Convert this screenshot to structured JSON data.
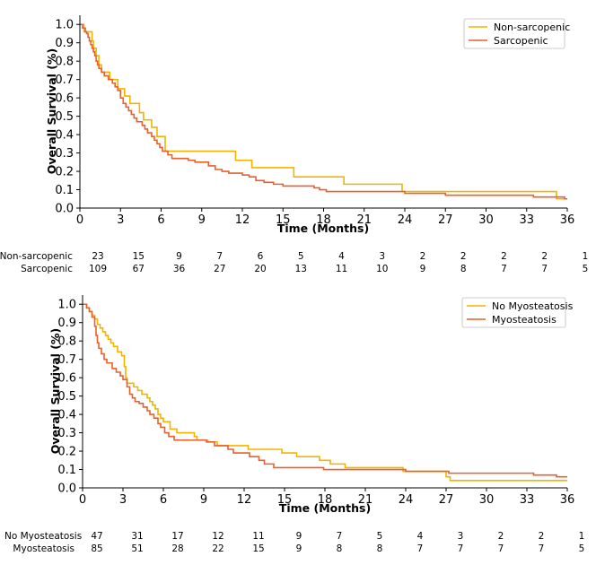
{
  "chart_data": [
    {
      "type": "line",
      "subtype": "kaplan-meier",
      "xlabel": "Time (Months)",
      "ylabel": "Overall Survival (%)",
      "xlim": [
        0,
        36
      ],
      "ylim": [
        0,
        1.05
      ],
      "x_ticks": [
        0,
        3,
        6,
        9,
        12,
        15,
        18,
        21,
        24,
        27,
        30,
        33,
        36
      ],
      "y_ticks": [
        0.0,
        0.1,
        0.2,
        0.3,
        0.4,
        0.5,
        0.6,
        0.7,
        0.8,
        0.9,
        1.0
      ],
      "x_tick_labels": [
        "0",
        "3",
        "6",
        "9",
        "12",
        "15",
        "18",
        "21",
        "24",
        "27",
        "30",
        "33",
        "36"
      ],
      "y_tick_labels": [
        "0.0",
        "0.1",
        "0.2",
        "0.3",
        "0.4",
        "0.5",
        "0.6",
        "0.7",
        "0.8",
        "0.9",
        "1.0"
      ],
      "legend_position": "top-right",
      "series": [
        {
          "name": "Non-sarcopenic",
          "color": "#F2B400",
          "steps": [
            [
              0,
              1.0
            ],
            [
              0.3,
              0.96
            ],
            [
              0.6,
              0.96
            ],
            [
              0.9,
              0.91
            ],
            [
              1.0,
              0.87
            ],
            [
              1.2,
              0.83
            ],
            [
              1.4,
              0.78
            ],
            [
              1.6,
              0.74
            ],
            [
              2.2,
              0.7
            ],
            [
              2.8,
              0.65
            ],
            [
              3.3,
              0.61
            ],
            [
              3.7,
              0.57
            ],
            [
              4.4,
              0.52
            ],
            [
              4.7,
              0.48
            ],
            [
              5.3,
              0.44
            ],
            [
              5.7,
              0.39
            ],
            [
              6.3,
              0.31
            ],
            [
              11.5,
              0.26
            ],
            [
              12.7,
              0.22
            ],
            [
              15.8,
              0.17
            ],
            [
              19.5,
              0.13
            ],
            [
              23.8,
              0.09
            ],
            [
              35.2,
              0.05
            ],
            [
              36,
              0.05
            ]
          ]
        },
        {
          "name": "Sarcopenic",
          "color": "#E8612C",
          "steps": [
            [
              0,
              1.0
            ],
            [
              0.2,
              0.98
            ],
            [
              0.4,
              0.96
            ],
            [
              0.5,
              0.95
            ],
            [
              0.6,
              0.93
            ],
            [
              0.7,
              0.91
            ],
            [
              0.8,
              0.89
            ],
            [
              0.9,
              0.87
            ],
            [
              1.0,
              0.85
            ],
            [
              1.1,
              0.83
            ],
            [
              1.2,
              0.8
            ],
            [
              1.3,
              0.78
            ],
            [
              1.4,
              0.76
            ],
            [
              1.6,
              0.74
            ],
            [
              1.8,
              0.72
            ],
            [
              2.1,
              0.7
            ],
            [
              2.4,
              0.68
            ],
            [
              2.6,
              0.66
            ],
            [
              2.8,
              0.64
            ],
            [
              3.0,
              0.6
            ],
            [
              3.2,
              0.57
            ],
            [
              3.4,
              0.55
            ],
            [
              3.6,
              0.53
            ],
            [
              3.8,
              0.51
            ],
            [
              4.0,
              0.49
            ],
            [
              4.2,
              0.47
            ],
            [
              4.6,
              0.45
            ],
            [
              4.8,
              0.43
            ],
            [
              5.0,
              0.41
            ],
            [
              5.3,
              0.39
            ],
            [
              5.5,
              0.37
            ],
            [
              5.7,
              0.35
            ],
            [
              5.9,
              0.33
            ],
            [
              6.1,
              0.31
            ],
            [
              6.5,
              0.29
            ],
            [
              6.8,
              0.27
            ],
            [
              8.0,
              0.26
            ],
            [
              8.5,
              0.25
            ],
            [
              9.5,
              0.23
            ],
            [
              10.0,
              0.21
            ],
            [
              10.5,
              0.2
            ],
            [
              11.0,
              0.19
            ],
            [
              12.0,
              0.18
            ],
            [
              12.5,
              0.17
            ],
            [
              13.0,
              0.15
            ],
            [
              13.6,
              0.14
            ],
            [
              14.3,
              0.13
            ],
            [
              15.0,
              0.12
            ],
            [
              17.3,
              0.11
            ],
            [
              17.7,
              0.1
            ],
            [
              18.2,
              0.09
            ],
            [
              24.0,
              0.08
            ],
            [
              27.0,
              0.07
            ],
            [
              33.5,
              0.06
            ],
            [
              35.8,
              0.05
            ],
            [
              36,
              0.05
            ]
          ]
        }
      ],
      "risk_table": {
        "times": [
          0,
          3,
          6,
          9,
          12,
          15,
          18,
          21,
          24,
          27,
          30,
          33,
          36
        ],
        "rows": [
          {
            "label": "Non-sarcopenic",
            "counts": [
              "23",
              "15",
              "9",
              "7",
              "6",
              "5",
              "4",
              "3",
              "2",
              "2",
              "2",
              "2",
              "1"
            ]
          },
          {
            "label": "Sarcopenic",
            "counts": [
              "109",
              "67",
              "36",
              "27",
              "20",
              "13",
              "11",
              "10",
              "9",
              "8",
              "7",
              "7",
              "5"
            ]
          }
        ]
      }
    },
    {
      "type": "line",
      "subtype": "kaplan-meier",
      "xlabel": "Time (Months)",
      "ylabel": "Overall Survival (%)",
      "xlim": [
        0,
        36
      ],
      "ylim": [
        0,
        1.05
      ],
      "x_ticks": [
        0,
        3,
        6,
        9,
        12,
        15,
        18,
        21,
        24,
        27,
        30,
        33,
        36
      ],
      "y_ticks": [
        0.0,
        0.1,
        0.2,
        0.3,
        0.4,
        0.5,
        0.6,
        0.7,
        0.8,
        0.9,
        1.0
      ],
      "x_tick_labels": [
        "0",
        "3",
        "6",
        "9",
        "12",
        "15",
        "18",
        "21",
        "24",
        "27",
        "30",
        "33",
        "36"
      ],
      "y_tick_labels": [
        "0.0",
        "0.1",
        "0.2",
        "0.3",
        "0.4",
        "0.5",
        "0.6",
        "0.7",
        "0.8",
        "0.9",
        "1.0"
      ],
      "legend_position": "top-right",
      "series": [
        {
          "name": "No Myosteatosis",
          "color": "#F2B400",
          "steps": [
            [
              0,
              1.0
            ],
            [
              0.3,
              0.98
            ],
            [
              0.5,
              0.96
            ],
            [
              0.7,
              0.94
            ],
            [
              0.9,
              0.92
            ],
            [
              1.1,
              0.89
            ],
            [
              1.3,
              0.87
            ],
            [
              1.5,
              0.85
            ],
            [
              1.7,
              0.83
            ],
            [
              1.9,
              0.81
            ],
            [
              2.1,
              0.79
            ],
            [
              2.3,
              0.77
            ],
            [
              2.6,
              0.74
            ],
            [
              2.9,
              0.72
            ],
            [
              3.1,
              0.66
            ],
            [
              3.2,
              0.6
            ],
            [
              3.3,
              0.57
            ],
            [
              3.8,
              0.55
            ],
            [
              4.1,
              0.53
            ],
            [
              4.4,
              0.51
            ],
            [
              4.8,
              0.49
            ],
            [
              5.0,
              0.47
            ],
            [
              5.2,
              0.45
            ],
            [
              5.4,
              0.43
            ],
            [
              5.6,
              0.4
            ],
            [
              5.8,
              0.38
            ],
            [
              6.0,
              0.36
            ],
            [
              6.5,
              0.32
            ],
            [
              7.0,
              0.3
            ],
            [
              8.3,
              0.28
            ],
            [
              8.5,
              0.26
            ],
            [
              9.3,
              0.25
            ],
            [
              10.0,
              0.23
            ],
            [
              12.3,
              0.21
            ],
            [
              14.8,
              0.19
            ],
            [
              15.9,
              0.17
            ],
            [
              17.6,
              0.15
            ],
            [
              18.4,
              0.13
            ],
            [
              19.5,
              0.11
            ],
            [
              23.8,
              0.09
            ],
            [
              27.0,
              0.06
            ],
            [
              27.3,
              0.04
            ],
            [
              36,
              0.04
            ]
          ]
        },
        {
          "name": "Myosteatosis",
          "color": "#E8612C",
          "steps": [
            [
              0,
              1.0
            ],
            [
              0.3,
              0.98
            ],
            [
              0.5,
              0.96
            ],
            [
              0.7,
              0.93
            ],
            [
              0.9,
              0.88
            ],
            [
              1.0,
              0.83
            ],
            [
              1.1,
              0.79
            ],
            [
              1.2,
              0.76
            ],
            [
              1.4,
              0.73
            ],
            [
              1.6,
              0.7
            ],
            [
              1.8,
              0.68
            ],
            [
              2.2,
              0.65
            ],
            [
              2.5,
              0.63
            ],
            [
              2.8,
              0.61
            ],
            [
              3.0,
              0.59
            ],
            [
              3.3,
              0.55
            ],
            [
              3.5,
              0.51
            ],
            [
              3.7,
              0.49
            ],
            [
              3.9,
              0.47
            ],
            [
              4.2,
              0.46
            ],
            [
              4.5,
              0.44
            ],
            [
              4.8,
              0.42
            ],
            [
              5.0,
              0.4
            ],
            [
              5.3,
              0.38
            ],
            [
              5.6,
              0.35
            ],
            [
              5.8,
              0.33
            ],
            [
              6.1,
              0.3
            ],
            [
              6.4,
              0.28
            ],
            [
              6.8,
              0.26
            ],
            [
              9.2,
              0.25
            ],
            [
              9.8,
              0.23
            ],
            [
              10.8,
              0.21
            ],
            [
              11.2,
              0.19
            ],
            [
              12.4,
              0.17
            ],
            [
              13.1,
              0.15
            ],
            [
              13.5,
              0.13
            ],
            [
              14.2,
              0.11
            ],
            [
              17.9,
              0.1
            ],
            [
              24.0,
              0.09
            ],
            [
              27.2,
              0.08
            ],
            [
              33.5,
              0.07
            ],
            [
              35.2,
              0.06
            ],
            [
              36,
              0.06
            ]
          ]
        }
      ],
      "risk_table": {
        "times": [
          0,
          3,
          6,
          9,
          12,
          15,
          18,
          21,
          24,
          27,
          30,
          33,
          36
        ],
        "rows": [
          {
            "label": "No Myosteatosis",
            "counts": [
              "47",
              "31",
              "17",
              "12",
              "11",
              "9",
              "7",
              "5",
              "4",
              "3",
              "2",
              "2",
              "1"
            ]
          },
          {
            "label": "Myosteatosis",
            "counts": [
              "85",
              "51",
              "28",
              "22",
              "15",
              "9",
              "8",
              "8",
              "7",
              "7",
              "7",
              "7",
              "5"
            ]
          }
        ]
      }
    }
  ]
}
